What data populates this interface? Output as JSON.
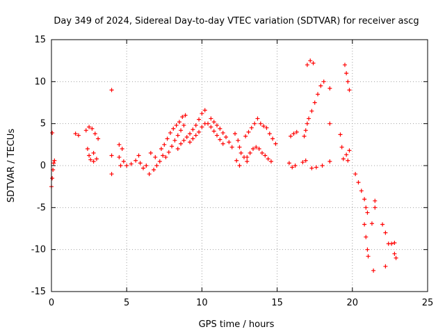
{
  "chart_data": {
    "type": "scatter",
    "title": "Day 349 of 2024, Sidereal Day-to-day VTEC variation (SDTVAR) for receiver ascg",
    "xlabel": "GPS time / hours",
    "ylabel": "SDTVAR / TECUs",
    "xlim": [
      0,
      25
    ],
    "ylim": [
      -15,
      15
    ],
    "xticks": [
      "0",
      "5",
      "10",
      "15",
      "20",
      "25"
    ],
    "yticks": [
      "-15",
      "-10",
      "-5",
      "0",
      "5",
      "10",
      "15"
    ],
    "grid": true,
    "marker": "plus",
    "color": "#ff0000",
    "series": [
      {
        "name": "SDTVAR",
        "points": [
          [
            0.0,
            -2.5
          ],
          [
            0.05,
            -1.5
          ],
          [
            0.1,
            -0.5
          ],
          [
            0.15,
            0.3
          ],
          [
            0.2,
            0.6
          ],
          [
            0.05,
            3.9
          ],
          [
            1.6,
            3.8
          ],
          [
            1.8,
            3.6
          ],
          [
            2.3,
            4.2
          ],
          [
            2.5,
            4.6
          ],
          [
            2.7,
            4.4
          ],
          [
            2.9,
            3.8
          ],
          [
            3.1,
            3.2
          ],
          [
            2.4,
            2.0
          ],
          [
            2.5,
            1.2
          ],
          [
            2.6,
            0.7
          ],
          [
            2.8,
            0.5
          ],
          [
            3.0,
            0.8
          ],
          [
            2.8,
            1.5
          ],
          [
            4.0,
            9.0
          ],
          [
            4.0,
            1.2
          ],
          [
            4.0,
            -1.0
          ],
          [
            4.5,
            2.5
          ],
          [
            4.7,
            2.0
          ],
          [
            4.5,
            1.0
          ],
          [
            4.6,
            0.0
          ],
          [
            4.8,
            0.5
          ],
          [
            5.0,
            0.0
          ],
          [
            5.3,
            0.2
          ],
          [
            5.6,
            0.6
          ],
          [
            5.8,
            1.2
          ],
          [
            5.9,
            0.3
          ],
          [
            6.1,
            -0.3
          ],
          [
            6.3,
            0.0
          ],
          [
            6.5,
            -1.0
          ],
          [
            6.8,
            -0.5
          ],
          [
            7.0,
            0.0
          ],
          [
            7.2,
            0.5
          ],
          [
            7.4,
            1.2
          ],
          [
            6.6,
            1.5
          ],
          [
            6.9,
            1.0
          ],
          [
            7.3,
            2.0
          ],
          [
            7.5,
            2.5
          ],
          [
            7.7,
            3.2
          ],
          [
            7.9,
            3.9
          ],
          [
            8.1,
            4.4
          ],
          [
            8.3,
            4.8
          ],
          [
            8.5,
            5.2
          ],
          [
            8.7,
            5.8
          ],
          [
            8.9,
            6.0
          ],
          [
            7.6,
            1.0
          ],
          [
            7.8,
            1.6
          ],
          [
            8.0,
            2.3
          ],
          [
            8.2,
            3.0
          ],
          [
            8.4,
            3.6
          ],
          [
            8.6,
            4.2
          ],
          [
            8.8,
            4.8
          ],
          [
            8.4,
            2.0
          ],
          [
            8.6,
            2.6
          ],
          [
            8.8,
            3.0
          ],
          [
            9.0,
            3.4
          ],
          [
            9.2,
            3.8
          ],
          [
            9.4,
            4.3
          ],
          [
            9.6,
            4.8
          ],
          [
            9.8,
            5.5
          ],
          [
            10.0,
            6.2
          ],
          [
            10.2,
            6.6
          ],
          [
            9.2,
            2.8
          ],
          [
            9.4,
            3.2
          ],
          [
            9.6,
            3.6
          ],
          [
            9.8,
            4.0
          ],
          [
            10.0,
            4.6
          ],
          [
            10.2,
            5.0
          ],
          [
            10.4,
            5.0
          ],
          [
            10.6,
            4.6
          ],
          [
            10.8,
            4.1
          ],
          [
            11.0,
            3.6
          ],
          [
            11.2,
            3.1
          ],
          [
            11.4,
            2.6
          ],
          [
            10.6,
            5.6
          ],
          [
            10.8,
            5.2
          ],
          [
            11.0,
            4.8
          ],
          [
            11.2,
            4.4
          ],
          [
            11.4,
            3.9
          ],
          [
            11.6,
            3.4
          ],
          [
            11.8,
            2.8
          ],
          [
            12.0,
            2.2
          ],
          [
            12.2,
            3.8
          ],
          [
            12.4,
            3.0
          ],
          [
            12.5,
            2.2
          ],
          [
            12.6,
            1.5
          ],
          [
            12.8,
            1.0
          ],
          [
            13.0,
            0.5
          ],
          [
            12.3,
            0.6
          ],
          [
            12.5,
            0.0
          ],
          [
            12.9,
            3.5
          ],
          [
            13.1,
            4.0
          ],
          [
            13.3,
            4.5
          ],
          [
            13.5,
            5.0
          ],
          [
            13.7,
            5.6
          ],
          [
            13.9,
            5.0
          ],
          [
            14.1,
            4.7
          ],
          [
            14.3,
            4.5
          ],
          [
            14.5,
            3.8
          ],
          [
            14.7,
            3.2
          ],
          [
            14.9,
            2.6
          ],
          [
            13.0,
            1.0
          ],
          [
            13.2,
            1.5
          ],
          [
            13.4,
            2.0
          ],
          [
            13.6,
            2.2
          ],
          [
            13.8,
            2.0
          ],
          [
            14.0,
            1.5
          ],
          [
            14.2,
            1.2
          ],
          [
            14.4,
            0.8
          ],
          [
            14.6,
            0.5
          ],
          [
            15.8,
            0.3
          ],
          [
            16.0,
            -0.2
          ],
          [
            16.2,
            0.0
          ],
          [
            15.9,
            3.5
          ],
          [
            16.1,
            3.8
          ],
          [
            16.3,
            4.0
          ],
          [
            16.7,
            0.4
          ],
          [
            16.9,
            0.6
          ],
          [
            16.8,
            3.5
          ],
          [
            16.9,
            4.2
          ],
          [
            17.0,
            5.0
          ],
          [
            17.1,
            5.6
          ],
          [
            17.3,
            6.5
          ],
          [
            17.5,
            7.5
          ],
          [
            17.7,
            8.5
          ],
          [
            17.9,
            9.5
          ],
          [
            18.1,
            10.0
          ],
          [
            17.0,
            12.0
          ],
          [
            17.2,
            12.5
          ],
          [
            17.4,
            12.2
          ],
          [
            18.5,
            9.2
          ],
          [
            18.5,
            5.0
          ],
          [
            17.3,
            -0.3
          ],
          [
            17.6,
            -0.2
          ],
          [
            18.0,
            0.0
          ],
          [
            18.5,
            0.5
          ],
          [
            19.2,
            3.7
          ],
          [
            19.3,
            2.2
          ],
          [
            19.5,
            12.0
          ],
          [
            19.6,
            11.0
          ],
          [
            19.7,
            10.0
          ],
          [
            19.8,
            9.0
          ],
          [
            19.4,
            0.8
          ],
          [
            19.6,
            1.3
          ],
          [
            19.8,
            1.8
          ],
          [
            19.7,
            0.6
          ],
          [
            20.2,
            -1.0
          ],
          [
            20.4,
            -2.0
          ],
          [
            20.6,
            -3.0
          ],
          [
            20.8,
            -4.0
          ],
          [
            20.9,
            -5.0
          ],
          [
            21.0,
            -5.6
          ],
          [
            20.8,
            -7.0
          ],
          [
            20.9,
            -8.5
          ],
          [
            21.0,
            -10.0
          ],
          [
            21.05,
            -10.8
          ],
          [
            21.3,
            -6.9
          ],
          [
            21.5,
            -4.2
          ],
          [
            21.5,
            -5.0
          ],
          [
            21.4,
            -12.5
          ],
          [
            22.0,
            -7.0
          ],
          [
            22.2,
            -8.0
          ],
          [
            22.4,
            -9.3
          ],
          [
            22.6,
            -9.3
          ],
          [
            22.8,
            -9.2
          ],
          [
            22.2,
            -12.0
          ],
          [
            22.8,
            -10.5
          ],
          [
            22.9,
            -11.0
          ]
        ]
      }
    ]
  }
}
